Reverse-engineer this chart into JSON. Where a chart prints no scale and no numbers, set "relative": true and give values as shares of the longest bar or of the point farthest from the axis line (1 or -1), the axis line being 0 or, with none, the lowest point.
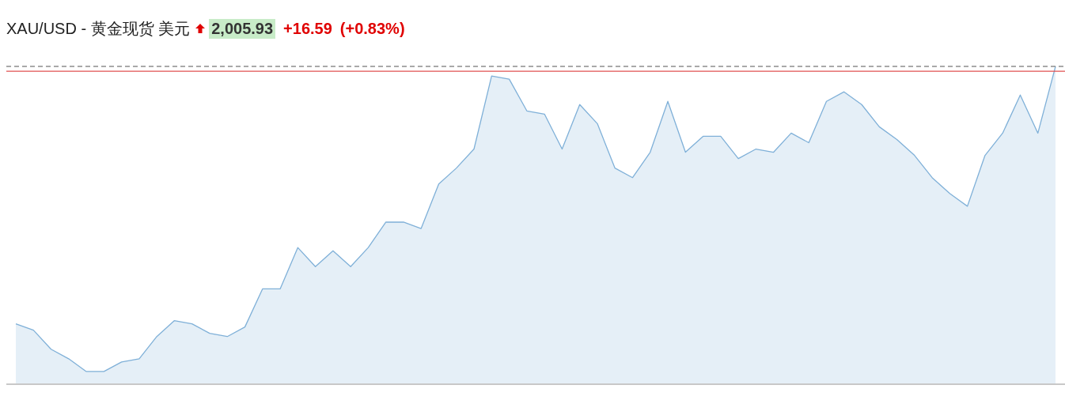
{
  "chart_data": {
    "type": "area",
    "title": "XAU/USD - 黄金现货 美元",
    "annotations": [
      "2,005.93",
      "+16.59",
      "(+0.83%)"
    ],
    "relative": true,
    "categories": [
      null,
      null,
      null,
      null,
      null,
      null,
      null,
      null,
      null,
      null,
      null,
      null,
      null,
      null,
      null,
      null,
      null,
      null,
      null,
      null,
      null,
      null,
      null,
      null,
      null,
      null,
      null,
      null,
      null,
      null,
      null,
      null,
      null,
      null,
      null,
      null,
      null,
      null,
      null,
      null,
      null,
      null,
      null,
      null,
      null,
      null,
      null,
      null,
      null,
      null,
      null,
      null,
      null,
      null,
      null,
      null,
      null,
      null,
      null,
      null
    ],
    "series": [
      {
        "color": "#7fb0d8",
        "values": [
          0.19,
          0.17,
          0.11,
          0.08,
          0.04,
          0.04,
          0.07,
          0.08,
          0.15,
          0.2,
          0.19,
          0.16,
          0.15,
          0.18,
          0.3,
          0.3,
          0.43,
          0.37,
          0.42,
          0.37,
          0.43,
          0.51,
          0.51,
          0.49,
          0.63,
          0.68,
          0.74,
          0.97,
          0.96,
          0.86,
          0.85,
          0.74,
          0.88,
          0.82,
          0.68,
          0.65,
          0.73,
          0.89,
          0.73,
          0.78,
          0.78,
          0.71,
          0.74,
          0.73,
          0.79,
          0.76,
          0.89,
          0.92,
          0.88,
          0.81,
          0.77,
          0.72,
          0.65,
          0.6,
          0.56,
          0.72,
          0.79,
          0.91,
          0.79,
          1
        ]
      }
    ],
    "ref_lines": [
      {
        "axis": "y",
        "value": 1,
        "color": "#555555",
        "line_style": "dashed"
      },
      {
        "axis": "y",
        "value": 0.985,
        "color": "#e05050",
        "line_style": "solid"
      }
    ],
    "legend": false,
    "grid": false,
    "marker": "none",
    "line_style": "solid"
  }
}
